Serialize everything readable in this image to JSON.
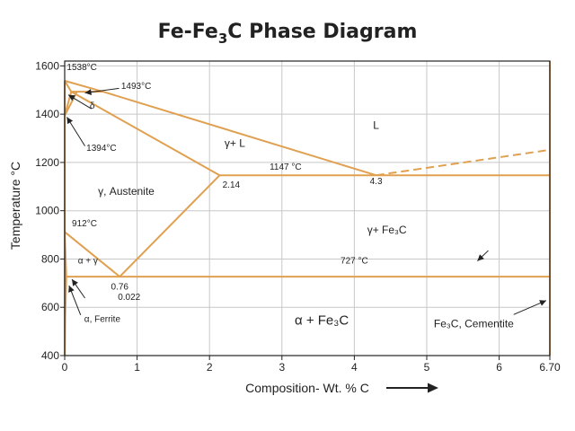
{
  "chart_data": {
    "type": "line",
    "title_main": "Fe-Fe",
    "title_sub": "3",
    "title_tail": "C Phase Diagram",
    "xlabel": "Composition- Wt. % C",
    "ylabel": "Temperature °C",
    "xlim": [
      0,
      6.7
    ],
    "ylim": [
      400,
      1620
    ],
    "grid": true,
    "x_ticks": [
      {
        "value": 0,
        "label": "0"
      },
      {
        "value": 1,
        "label": "1"
      },
      {
        "value": 2,
        "label": "2"
      },
      {
        "value": 3,
        "label": "3"
      },
      {
        "value": 4,
        "label": "4"
      },
      {
        "value": 5,
        "label": "5"
      },
      {
        "value": 6,
        "label": "6"
      },
      {
        "value": 6.7,
        "label": "6.70"
      }
    ],
    "y_ticks": [
      {
        "value": 400,
        "label": "400"
      },
      {
        "value": 600,
        "label": "600"
      },
      {
        "value": 800,
        "label": "800"
      },
      {
        "value": 1000,
        "label": "1000"
      },
      {
        "value": 1200,
        "label": "1200"
      },
      {
        "value": 1400,
        "label": "1400"
      },
      {
        "value": 1600,
        "label": "1600"
      }
    ],
    "phase_lines": [
      {
        "name": "liquidus",
        "points": [
          [
            0,
            1538
          ],
          [
            0.53,
            1493
          ],
          [
            4.3,
            1147
          ]
        ]
      },
      {
        "name": "liquidus-cementite",
        "style": "dashed",
        "points": [
          [
            4.3,
            1147
          ],
          [
            6.7,
            1252
          ]
        ]
      },
      {
        "name": "solidus",
        "points": [
          [
            0.09,
            1493
          ],
          [
            2.14,
            1147
          ]
        ]
      },
      {
        "name": "peritectic",
        "points": [
          [
            0.09,
            1493
          ],
          [
            0.53,
            1493
          ]
        ]
      },
      {
        "name": "delta-outer",
        "points": [
          [
            0,
            1538
          ],
          [
            0.09,
            1493
          ]
        ]
      },
      {
        "name": "delta-inner",
        "points": [
          [
            0,
            1394
          ],
          [
            0.09,
            1493
          ]
        ]
      },
      {
        "name": "delta-gamma",
        "points": [
          [
            0,
            1394
          ],
          [
            0.17,
            1493
          ]
        ]
      },
      {
        "name": "eutectic",
        "points": [
          [
            2.14,
            1147
          ],
          [
            6.7,
            1147
          ]
        ]
      },
      {
        "name": "acm",
        "points": [
          [
            2.14,
            1147
          ],
          [
            0.76,
            727
          ]
        ]
      },
      {
        "name": "a3",
        "points": [
          [
            0,
            912
          ],
          [
            0.76,
            727
          ]
        ]
      },
      {
        "name": "alpha-gamma",
        "points": [
          [
            0,
            912
          ],
          [
            0.022,
            727
          ]
        ]
      },
      {
        "name": "eutectoid",
        "points": [
          [
            0.022,
            727
          ],
          [
            6.7,
            727
          ]
        ]
      },
      {
        "name": "alpha-solvus",
        "points": [
          [
            0.022,
            727
          ],
          [
            0.008,
            560
          ],
          [
            0.002,
            400
          ]
        ]
      },
      {
        "name": "fe-axis",
        "points": [
          [
            0,
            400
          ],
          [
            0,
            1538
          ]
        ]
      },
      {
        "name": "cementite",
        "points": [
          [
            6.7,
            400
          ],
          [
            6.7,
            1620
          ]
        ]
      }
    ],
    "annotations": [
      {
        "text": "1538°C",
        "x": 0.03,
        "y": 1582,
        "anchor": "start"
      },
      {
        "text": "1493°C",
        "x": 0.78,
        "y": 1505,
        "anchor": "start"
      },
      {
        "text": "δ",
        "x": 0.38,
        "y": 1422,
        "anchor": "middle"
      },
      {
        "text": "1394°C",
        "x": 0.3,
        "y": 1248,
        "anchor": "start"
      },
      {
        "text": "γ+ L",
        "x": 2.35,
        "y": 1265,
        "anchor": "middle",
        "cls": "region"
      },
      {
        "text": "L",
        "x": 4.3,
        "y": 1340,
        "anchor": "middle",
        "cls": "region"
      },
      {
        "text": "1147 °C",
        "x": 3.05,
        "y": 1170,
        "anchor": "middle"
      },
      {
        "text": "2.14",
        "x": 2.3,
        "y": 1095,
        "anchor": "middle"
      },
      {
        "text": "4.3",
        "x": 4.3,
        "y": 1110,
        "anchor": "middle"
      },
      {
        "text": "γ, Austenite",
        "x": 0.85,
        "y": 1065,
        "anchor": "middle",
        "cls": "region"
      },
      {
        "text": "912°C",
        "x": 0.1,
        "y": 935,
        "anchor": "start"
      },
      {
        "text": "γ+ Fe₃C",
        "x": 4.45,
        "y": 905,
        "anchor": "middle",
        "cls": "region"
      },
      {
        "text": "α + γ",
        "x": 0.32,
        "y": 782,
        "anchor": "middle"
      },
      {
        "text": "727 °C",
        "x": 4.0,
        "y": 782,
        "anchor": "middle"
      },
      {
        "text": "0.76",
        "x": 0.76,
        "y": 673,
        "anchor": "middle"
      },
      {
        "text": "0.022",
        "x": 0.89,
        "y": 630,
        "anchor": "middle"
      },
      {
        "text": "α, Ferrite",
        "x": 0.52,
        "y": 540,
        "anchor": "middle"
      },
      {
        "text": "α + Fe₃C",
        "x": 3.55,
        "y": 528,
        "anchor": "middle",
        "cls": "region-lg"
      },
      {
        "text": "Fe₃C, Cementite",
        "x": 5.65,
        "y": 518,
        "anchor": "middle",
        "cls": "region"
      }
    ],
    "arrows": [
      {
        "from": [
          0.75,
          1507
        ],
        "to": [
          0.28,
          1488
        ]
      },
      {
        "from": [
          0.37,
          1422
        ],
        "to": [
          0.05,
          1480
        ]
      },
      {
        "from": [
          0.28,
          1268
        ],
        "to": [
          0.03,
          1388
        ]
      },
      {
        "from": [
          0.28,
          638
        ],
        "to": [
          0.1,
          716
        ]
      },
      {
        "from": [
          0.22,
          568
        ],
        "to": [
          0.06,
          690
        ]
      },
      {
        "from": [
          5.85,
          835
        ],
        "to": [
          5.7,
          792
        ]
      },
      {
        "from": [
          6.2,
          570
        ],
        "to": [
          6.65,
          628
        ]
      }
    ]
  }
}
